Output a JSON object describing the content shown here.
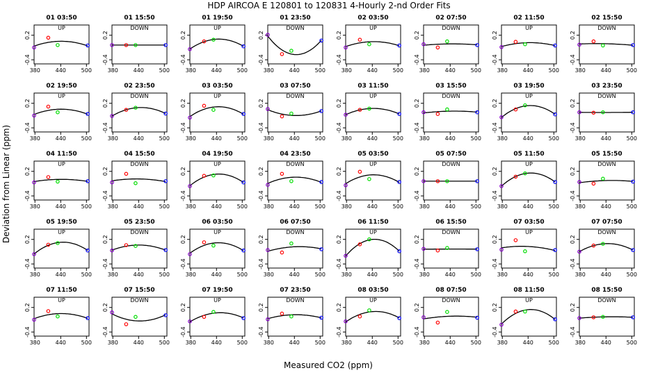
{
  "figure": {
    "title": "HDP    AIRCOA E    120801 to 120831    4-Hourly 2-nd Order Fits",
    "xlabel": "Measured CO2 (ppm)",
    "ylabel": "Deviation from Linear (ppm)"
  },
  "chart_data": {
    "type": "scatter",
    "layout": "small-multiples 5x8",
    "x_ticks": [
      380,
      440,
      500
    ],
    "y_ticks": [
      0.2,
      -0.4
    ],
    "ylim": [
      -0.5,
      0.45
    ],
    "xlim": [
      378,
      506
    ],
    "grid": false,
    "point_colors": {
      "std1": "#8800cc",
      "std2": "#ff0000",
      "std3": "#00dd00",
      "std4": "#0000ff"
    },
    "std_x": [
      378,
      411,
      433,
      503
    ],
    "panels": [
      {
        "time": "01 03:50",
        "mode": "UP",
        "values": [
          -0.1,
          0.14,
          -0.04,
          -0.05
        ]
      },
      {
        "time": "01 15:50",
        "mode": "DOWN",
        "values": [
          -0.04,
          -0.04,
          -0.04,
          -0.04
        ]
      },
      {
        "time": "01 19:50",
        "mode": "UP",
        "values": [
          -0.14,
          0.05,
          0.09,
          -0.07
        ]
      },
      {
        "time": "01 23:50",
        "mode": "DOWN",
        "values": [
          0.21,
          -0.26,
          -0.18,
          0.07
        ]
      },
      {
        "time": "02 03:50",
        "mode": "UP",
        "values": [
          -0.1,
          0.09,
          -0.02,
          -0.05
        ]
      },
      {
        "time": "02 07:50",
        "mode": "DOWN",
        "values": [
          -0.02,
          -0.1,
          0.05,
          -0.04
        ]
      },
      {
        "time": "02 11:50",
        "mode": "UP",
        "values": [
          -0.09,
          0.04,
          -0.02,
          -0.05
        ]
      },
      {
        "time": "02 15:50",
        "mode": "DOWN",
        "values": [
          -0.03,
          0.05,
          -0.05,
          -0.04
        ]
      },
      {
        "time": "02 19:50",
        "mode": "UP",
        "values": [
          -0.1,
          0.12,
          -0.02,
          -0.06
        ]
      },
      {
        "time": "02 23:50",
        "mode": "DOWN",
        "values": [
          -0.11,
          0.04,
          0.09,
          -0.05
        ]
      },
      {
        "time": "03 03:50",
        "mode": "UP",
        "values": [
          -0.15,
          0.14,
          0.04,
          -0.06
        ]
      },
      {
        "time": "03 07:50",
        "mode": "DOWN",
        "values": [
          0.06,
          -0.12,
          -0.05,
          0.01
        ]
      },
      {
        "time": "03 11:50",
        "mode": "UP",
        "values": [
          -0.08,
          0.04,
          0.07,
          -0.06
        ]
      },
      {
        "time": "03 15:50",
        "mode": "DOWN",
        "values": [
          -0.02,
          -0.06,
          0.05,
          -0.02
        ]
      },
      {
        "time": "03 19:50",
        "mode": "UP",
        "values": [
          -0.14,
          0.05,
          0.15,
          -0.07
        ]
      },
      {
        "time": "03 23:50",
        "mode": "DOWN",
        "values": [
          -0.02,
          -0.03,
          -0.02,
          -0.02
        ]
      },
      {
        "time": "04 11:50",
        "mode": "UP",
        "values": [
          -0.07,
          0.06,
          -0.05,
          -0.04
        ]
      },
      {
        "time": "04 15:50",
        "mode": "DOWN",
        "values": [
          -0.07,
          0.14,
          -0.09,
          -0.04
        ]
      },
      {
        "time": "04 19:50",
        "mode": "UP",
        "values": [
          -0.16,
          0.09,
          0.1,
          -0.07
        ]
      },
      {
        "time": "04 23:50",
        "mode": "DOWN",
        "values": [
          -0.13,
          0.14,
          -0.04,
          -0.06
        ]
      },
      {
        "time": "05 03:50",
        "mode": "UP",
        "values": [
          -0.14,
          0.19,
          0.01,
          -0.06
        ]
      },
      {
        "time": "05 07:50",
        "mode": "DOWN",
        "values": [
          -0.04,
          -0.04,
          -0.04,
          -0.04
        ]
      },
      {
        "time": "05 11:50",
        "mode": "UP",
        "values": [
          -0.16,
          0.07,
          0.15,
          -0.06
        ]
      },
      {
        "time": "05 15:50",
        "mode": "DOWN",
        "values": [
          -0.06,
          -0.1,
          0.02,
          -0.05
        ]
      },
      {
        "time": "05 19:50",
        "mode": "UP",
        "values": [
          -0.16,
          0.07,
          0.11,
          -0.07
        ]
      },
      {
        "time": "05 23:50",
        "mode": "DOWN",
        "values": [
          -0.07,
          0.06,
          0.04,
          -0.06
        ]
      },
      {
        "time": "06 03:50",
        "mode": "UP",
        "values": [
          -0.16,
          0.13,
          0.05,
          -0.07
        ]
      },
      {
        "time": "06 07:50",
        "mode": "DOWN",
        "values": [
          -0.06,
          -0.12,
          0.1,
          -0.04
        ]
      },
      {
        "time": "06 11:50",
        "mode": "UP",
        "values": [
          -0.2,
          0.08,
          0.2,
          -0.09
        ]
      },
      {
        "time": "06 15:50",
        "mode": "DOWN",
        "values": [
          -0.03,
          -0.07,
          -0.01,
          -0.04
        ]
      },
      {
        "time": "07 03:50",
        "mode": "UP",
        "values": [
          -0.05,
          0.18,
          -0.09,
          -0.06
        ]
      },
      {
        "time": "07 07:50",
        "mode": "DOWN",
        "values": [
          -0.1,
          0.05,
          0.09,
          -0.06
        ]
      },
      {
        "time": "07 11:50",
        "mode": "UP",
        "values": [
          -0.1,
          0.11,
          -0.02,
          -0.06
        ]
      },
      {
        "time": "07 15:50",
        "mode": "DOWN",
        "values": [
          0.08,
          -0.21,
          -0.03,
          0.01
        ]
      },
      {
        "time": "07 19:50",
        "mode": "UP",
        "values": [
          -0.14,
          -0.03,
          0.09,
          -0.06
        ]
      },
      {
        "time": "07 23:50",
        "mode": "DOWN",
        "values": [
          -0.09,
          0.05,
          -0.02,
          -0.05
        ]
      },
      {
        "time": "08 03:50",
        "mode": "UP",
        "values": [
          -0.14,
          -0.02,
          0.13,
          -0.06
        ]
      },
      {
        "time": "08 07:50",
        "mode": "DOWN",
        "values": [
          -0.04,
          -0.17,
          0.09,
          -0.05
        ]
      },
      {
        "time": "08 11:50",
        "mode": "UP",
        "values": [
          -0.22,
          0.1,
          0.1,
          -0.09
        ]
      },
      {
        "time": "08 15:50",
        "mode": "DOWN",
        "values": [
          -0.06,
          -0.04,
          -0.03,
          -0.04
        ]
      }
    ]
  }
}
